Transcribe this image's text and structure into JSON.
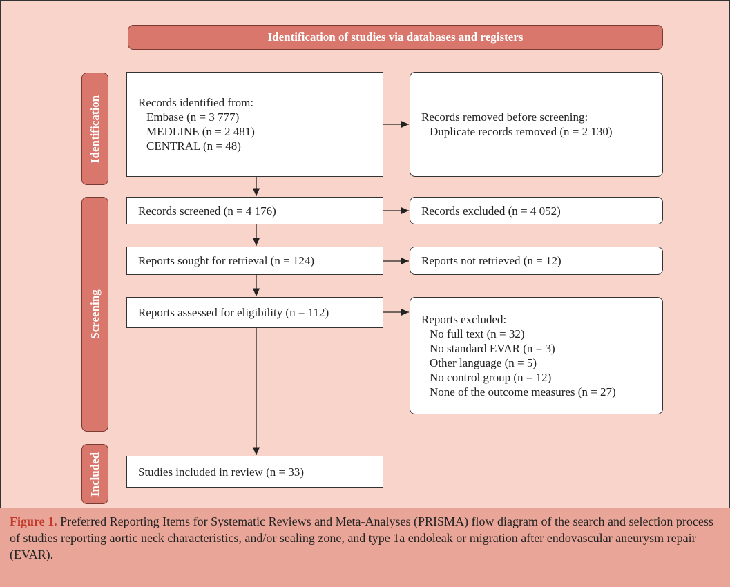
{
  "header": {
    "title": "Identification of studies via databases and registers"
  },
  "phases": [
    "Identification",
    "Screening",
    "Included"
  ],
  "nodes": [
    {
      "lines": [
        "Records identified from:",
        "Embase (n = 3 777)",
        "MEDLINE (n = 2 481)",
        "CENTRAL (n = 48)"
      ]
    },
    {
      "lines": [
        "Records removed before screening:",
        "Duplicate records removed (n = 2 130)"
      ]
    },
    {
      "lines": [
        "Records screened (n = 4 176)"
      ]
    },
    {
      "lines": [
        "Records excluded (n = 4 052)"
      ]
    },
    {
      "lines": [
        "Reports sought for retrieval (n = 124)"
      ]
    },
    {
      "lines": [
        "Reports not retrieved (n = 12)"
      ]
    },
    {
      "lines": [
        "Reports assessed for eligibility (n = 112)"
      ]
    },
    {
      "lines": [
        "Reports excluded:",
        "No full text (n = 32)",
        "No standard EVAR (n = 3)",
        "Other language (n = 5)",
        "No control group (n = 12)",
        "None of the outcome measures (n = 27)"
      ]
    },
    {
      "lines": [
        "Studies included in review (n = 33)"
      ]
    }
  ],
  "caption": {
    "label": "Figure 1.",
    "text": "Preferred Reporting Items for Systematic Reviews and Meta-Analyses (PRISMA) flow diagram of the search and selection process of studies reporting aortic neck characteristics, and/or sealing zone, and type 1a endoleak or migration after endovascular aneurysm repair (EVAR)."
  }
}
